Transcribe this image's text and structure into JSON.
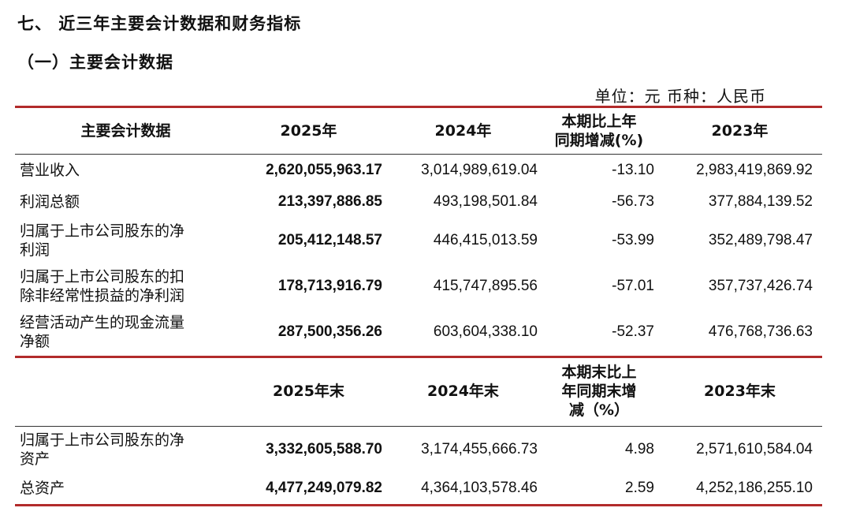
{
  "section_title": "七、 近三年主要会计数据和财务指标",
  "sub_title": "（一）主要会计数据",
  "unit": "单位：元  币种：人民币",
  "table1": {
    "header": {
      "col0": "主要会计数据",
      "col1": "2025年",
      "col2": "2024年",
      "col3_line1": "本期比上年",
      "col3_line2": "同期增减(%)",
      "col4": "2023年"
    },
    "rows": [
      {
        "label_line1": "营业收入",
        "label_line2": "",
        "v2025": "2,620,055,963.17",
        "v2024": "3,014,989,619.04",
        "change": "-13.10",
        "v2023": "2,983,419,869.92"
      },
      {
        "label_line1": "利润总额",
        "label_line2": "",
        "v2025": "213,397,886.85",
        "v2024": "493,198,501.84",
        "change": "-56.73",
        "v2023": "377,884,139.52"
      },
      {
        "label_line1": "归属于上市公司股东的净",
        "label_line2": "利润",
        "v2025": "205,412,148.57",
        "v2024": "446,415,013.59",
        "change": "-53.99",
        "v2023": "352,489,798.47"
      },
      {
        "label_line1": "归属于上市公司股东的扣",
        "label_line2": "除非经常性损益的净利润",
        "v2025": "178,713,916.79",
        "v2024": "415,747,895.56",
        "change": "-57.01",
        "v2023": "357,737,426.74"
      },
      {
        "label_line1": "经营活动产生的现金流量",
        "label_line2": "净额",
        "v2025": "287,500,356.26",
        "v2024": "603,604,338.10",
        "change": "-52.37",
        "v2023": "476,768,736.63"
      }
    ]
  },
  "table2": {
    "header": {
      "col0": "",
      "col1": "2025年末",
      "col2": "2024年末",
      "col3_line1": "本期末比上",
      "col3_line2": "年同期末增",
      "col3_line3": "减（%）",
      "col4": "2023年末"
    },
    "rows": [
      {
        "label_line1": "归属于上市公司股东的净",
        "label_line2": "资产",
        "v2025": "3,332,605,588.70",
        "v2024": "3,174,455,666.73",
        "change": "4.98",
        "v2023": "2,571,610,584.04"
      },
      {
        "label_line1": "总资产",
        "label_line2": "",
        "v2025": "4,477,249,079.82",
        "v2024": "4,364,103,578.46",
        "change": "2.59",
        "v2023": "4,252,186,255.10"
      }
    ]
  },
  "colors": {
    "rule_red": "#b22b2b",
    "text": "#111111"
  }
}
